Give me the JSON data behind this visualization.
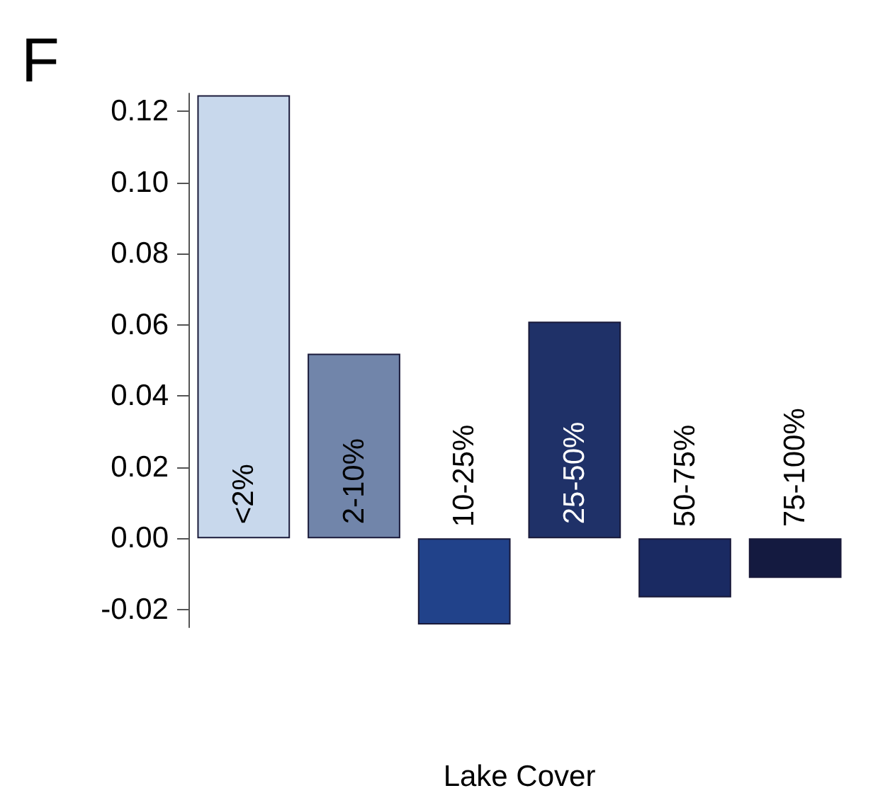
{
  "chart_data": {
    "type": "bar",
    "title": "F",
    "xlabel": "Lake Cover",
    "categories": [
      "<2%",
      "2-10%",
      "10-25%",
      "25-50%",
      "50-75%",
      "75-100%"
    ],
    "values": [
      0.1245,
      0.0519,
      -0.0242,
      0.0609,
      -0.0166,
      -0.0111
    ],
    "colors": [
      "#c8d8ec",
      "#7185aa",
      "#21428a",
      "#1f3168",
      "#1a2a62",
      "#141a40"
    ],
    "ylim": [
      -0.025,
      0.125
    ],
    "yticks": [
      {
        "value": -0.02,
        "label": "-0.02"
      },
      {
        "value": 0,
        "label": "0.00"
      },
      {
        "value": 0.02,
        "label": "0.02"
      },
      {
        "value": 0.04,
        "label": "0.04"
      },
      {
        "value": 0.06,
        "label": "0.06"
      },
      {
        "value": 0.08,
        "label": "0.08"
      },
      {
        "value": 0.1,
        "label": "0.10"
      },
      {
        "value": 0.12,
        "label": "0.12"
      }
    ],
    "grid": false
  }
}
